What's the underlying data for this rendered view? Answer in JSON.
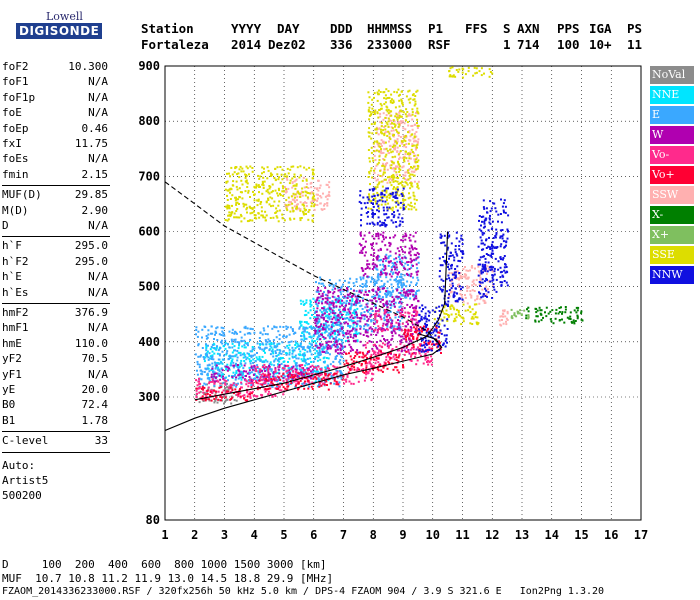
{
  "logo": {
    "line1": "Lowell",
    "line2": "DIGISONDE"
  },
  "header": {
    "labels": [
      "Station",
      "YYYY",
      "DAY",
      "DDD",
      "HHMMSS",
      "P1",
      "FFS",
      "S",
      "AXN",
      "PPS",
      "IGA",
      "PS"
    ],
    "values": [
      "Fortaleza",
      "2014",
      "Dez02",
      "336",
      "233000",
      "RSF",
      "1",
      "714",
      "100",
      "10+",
      "11"
    ]
  },
  "params": {
    "group1": [
      {
        "k": "foF2",
        "v": "10.300"
      },
      {
        "k": "foF1",
        "v": "N/A"
      },
      {
        "k": "foF1p",
        "v": "N/A"
      },
      {
        "k": "foE",
        "v": "N/A"
      },
      {
        "k": "foEp",
        "v": "0.46"
      },
      {
        "k": "fxI",
        "v": "11.75"
      },
      {
        "k": "foEs",
        "v": "N/A"
      },
      {
        "k": "fmin",
        "v": "2.15"
      }
    ],
    "group2": [
      {
        "k": "MUF(D)",
        "v": "29.85"
      },
      {
        "k": "M(D)",
        "v": "2.90"
      },
      {
        "k": "D",
        "v": "N/A"
      }
    ],
    "group3": [
      {
        "k": "h`F",
        "v": "295.0"
      },
      {
        "k": "h`F2",
        "v": "295.0"
      },
      {
        "k": "h`E",
        "v": "N/A"
      },
      {
        "k": "h`Es",
        "v": "N/A"
      }
    ],
    "group4": [
      {
        "k": "hmF2",
        "v": "376.9"
      },
      {
        "k": "hmF1",
        "v": "N/A"
      },
      {
        "k": "hmE",
        "v": "110.0"
      },
      {
        "k": "yF2",
        "v": "70.5"
      },
      {
        "k": "yF1",
        "v": "N/A"
      },
      {
        "k": "yE",
        "v": "20.0"
      },
      {
        "k": "B0",
        "v": "72.4"
      },
      {
        "k": "B1",
        "v": "1.78"
      }
    ],
    "clevel": {
      "k": "C-level",
      "v": "33"
    },
    "auto": [
      "Auto:",
      "Artist5",
      "500200"
    ]
  },
  "legend": [
    {
      "label": "NoVal",
      "color": "#8c8c8c"
    },
    {
      "label": "NNE",
      "color": "#00e5ff"
    },
    {
      "label": "E",
      "color": "#3aa8ff"
    },
    {
      "label": "W",
      "color": "#b000b0"
    },
    {
      "label": "Vo-",
      "color": "#ff2a8c"
    },
    {
      "label": "Vo+",
      "color": "#ff0033"
    },
    {
      "label": "SSW",
      "color": "#ffb0b0"
    },
    {
      "label": "X-",
      "color": "#007f00"
    },
    {
      "label": "X+",
      "color": "#7fbf5f"
    },
    {
      "label": "SSE",
      "color": "#dddd00"
    },
    {
      "label": "NNW",
      "color": "#1010e0"
    }
  ],
  "footer": {
    "d_row": "D     100  200  400  600  800 1000 1500 3000 [km]",
    "muf_row": "MUF  10.7 10.8 11.2 11.9 13.0 14.5 18.8 29.9 [MHz]",
    "file_row": "FZAOM_2014336233000.RSF / 320fx256h 50 kHz 5.0 km / DPS-4 FZAOM 904 / 3.9 S 321.6 E   Ion2Png 1.3.20"
  },
  "chart_data": {
    "type": "scatter",
    "title": "",
    "xlabel": "",
    "ylabel": "",
    "xlim": [
      1,
      17
    ],
    "ylim": [
      80,
      900
    ],
    "xticks": [
      1,
      2,
      3,
      4,
      5,
      6,
      7,
      8,
      9,
      10,
      11,
      12,
      13,
      14,
      15,
      16,
      17
    ],
    "yticks": [
      80,
      300,
      400,
      500,
      600,
      700,
      800,
      900
    ],
    "y_scale": "ionogram-height",
    "grid": true,
    "legend_position": "right",
    "series": [
      {
        "name": "NoVal",
        "regions": [
          [
            2,
            3.5,
            290,
            330
          ]
        ]
      },
      {
        "name": "NNE",
        "regions": [
          [
            2.3,
            6.5,
            330,
            400
          ],
          [
            5.5,
            7.5,
            400,
            480
          ]
        ]
      },
      {
        "name": "E",
        "regions": [
          [
            2,
            7,
            320,
            430
          ],
          [
            6,
            9,
            420,
            520
          ],
          [
            8,
            9.5,
            480,
            560
          ]
        ]
      },
      {
        "name": "W",
        "regions": [
          [
            6,
            9.5,
            380,
            500
          ],
          [
            7.5,
            9.5,
            520,
            600
          ],
          [
            2.5,
            6,
            330,
            360
          ]
        ]
      },
      {
        "name": "Vo-",
        "regions": [
          [
            2,
            5,
            300,
            335
          ],
          [
            4,
            8,
            325,
            360
          ],
          [
            7.5,
            10,
            360,
            400
          ],
          [
            8,
            9.5,
            420,
            460
          ]
        ]
      },
      {
        "name": "Vo+",
        "regions": [
          [
            2,
            4,
            295,
            320
          ],
          [
            4,
            7,
            315,
            345
          ],
          [
            7,
            9,
            345,
            385
          ],
          [
            9,
            10.3,
            380,
            430
          ]
        ]
      },
      {
        "name": "SSW",
        "regions": [
          [
            10.5,
            12,
            470,
            540
          ],
          [
            12.2,
            12.5,
            430,
            460
          ],
          [
            8,
            9.5,
            690,
            820
          ],
          [
            5,
            6.5,
            640,
            700
          ]
        ]
      },
      {
        "name": "X-",
        "regions": [
          [
            13,
            15,
            435,
            465
          ]
        ]
      },
      {
        "name": "X+",
        "regions": [
          [
            12.6,
            13.2,
            440,
            460
          ]
        ]
      },
      {
        "name": "SSE",
        "regions": [
          [
            3,
            6,
            620,
            720
          ],
          [
            7.8,
            9.5,
            640,
            860
          ],
          [
            10,
            11.5,
            430,
            470
          ],
          [
            10.5,
            12,
            880,
            900
          ]
        ]
      },
      {
        "name": "NNW",
        "regions": [
          [
            11.5,
            12.5,
            480,
            660
          ],
          [
            10.2,
            11,
            470,
            600
          ],
          [
            7.5,
            9,
            610,
            680
          ],
          [
            9.5,
            10.5,
            380,
            470
          ]
        ]
      }
    ],
    "curves": [
      {
        "name": "plasma-frequency-profile",
        "style": "solid",
        "points": [
          [
            1,
            240
          ],
          [
            2,
            262
          ],
          [
            3,
            280
          ],
          [
            4,
            295
          ],
          [
            5,
            310
          ],
          [
            6,
            325
          ],
          [
            7,
            340
          ],
          [
            8,
            352
          ],
          [
            9,
            365
          ],
          [
            10,
            378
          ],
          [
            10.3,
            390
          ],
          [
            10.1,
            405
          ],
          [
            9.5,
            415
          ]
        ]
      },
      {
        "name": "extrapolated-profile",
        "style": "dashed",
        "points": [
          [
            1,
            690
          ],
          [
            2,
            650
          ],
          [
            3,
            610
          ],
          [
            4,
            580
          ],
          [
            5,
            550
          ],
          [
            6,
            520
          ],
          [
            7,
            495
          ],
          [
            8,
            470
          ],
          [
            9,
            445
          ],
          [
            9.8,
            420
          ],
          [
            10.3,
            390
          ]
        ]
      },
      {
        "name": "trace",
        "style": "solid",
        "points": [
          [
            2,
            295
          ],
          [
            3,
            305
          ],
          [
            4,
            315
          ],
          [
            5,
            325
          ],
          [
            6,
            340
          ],
          [
            7,
            355
          ],
          [
            8,
            372
          ],
          [
            9,
            390
          ],
          [
            9.8,
            410
          ],
          [
            10.2,
            440
          ],
          [
            10.4,
            470
          ],
          [
            10.5,
            600
          ]
        ]
      }
    ]
  }
}
